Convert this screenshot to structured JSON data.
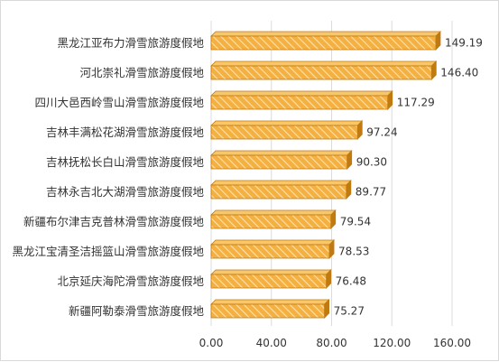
{
  "chart_data": {
    "type": "bar",
    "orientation": "horizontal",
    "categories": [
      "黑龙江亚布力滑雪旅游度假地",
      "河北崇礼滑雪旅游度假地",
      "四川大邑西岭雪山滑雪旅游度假地",
      "吉林丰满松花湖滑雪旅游度假地",
      "吉林抚松长白山滑雪旅游度假地",
      "吉林永吉北大湖滑雪旅游度假地",
      "新疆布尔津吉克普林滑雪旅游度假地",
      "黑龙江宝清圣洁摇篮山滑雪旅游度假地",
      "北京延庆海陀滑雪旅游度假地",
      "新疆阿勒泰滑雪旅游度假地"
    ],
    "values": [
      149.19,
      146.4,
      117.29,
      97.24,
      90.3,
      89.77,
      79.54,
      78.53,
      76.48,
      75.27
    ],
    "value_labels": [
      "149.19",
      "146.40",
      "117.29",
      "97.24",
      "90.30",
      "89.77",
      "79.54",
      "78.53",
      "76.48",
      "75.27"
    ],
    "xlim": [
      0,
      160
    ],
    "x_ticks": [
      0,
      40,
      80,
      120,
      160
    ],
    "x_tick_labels": [
      "0.00",
      "40.00",
      "80.00",
      "120.00",
      "160.00"
    ],
    "title": "",
    "xlabel": "",
    "ylabel": "",
    "grid": "vertical",
    "legend": "none",
    "bar_fill": "#f5b042",
    "bar_hatch": "#fde2ad",
    "bar_edge": "#c07a10",
    "bar_top": "#f8c76c",
    "grid_color": "#dcdcdc"
  }
}
